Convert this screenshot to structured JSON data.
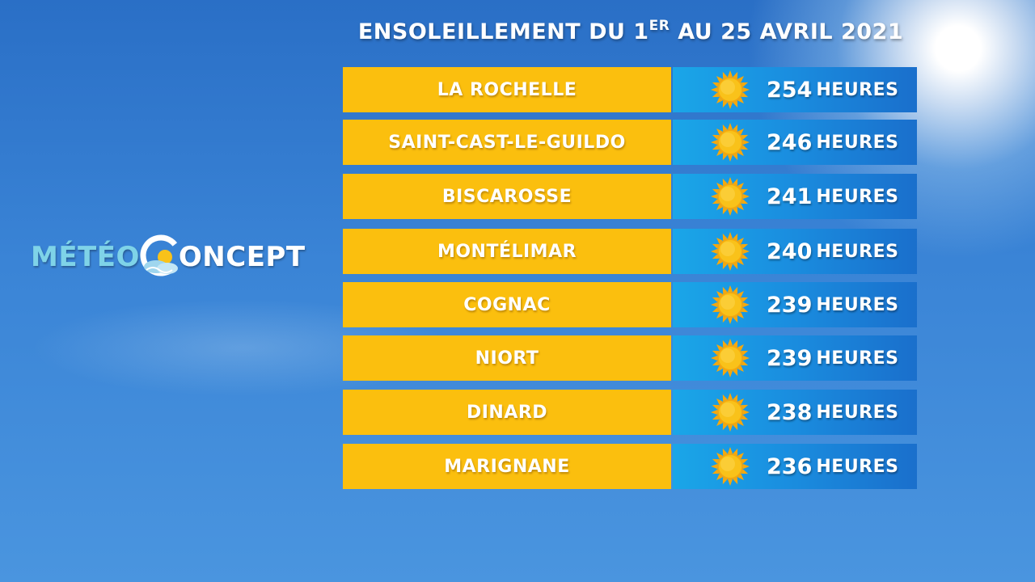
{
  "title": {
    "prefix": "ENSOLEILLEMENT DU 1",
    "sup": "ER",
    "suffix": " AU 25 AVRIL 2021"
  },
  "logo": {
    "part1": "MÉTÉO",
    "part2": "ONCEPT"
  },
  "unit": "HEURES",
  "colors": {
    "city_band": "#fbbf0e",
    "value_band": "#1a8fe0",
    "sun": "#f9c21a"
  },
  "rows": [
    {
      "city": "LA ROCHELLE",
      "hours": "254",
      "icon": "sun-icon"
    },
    {
      "city": "SAINT-CAST-LE-GUILDO",
      "hours": "246",
      "icon": "sun-icon"
    },
    {
      "city": "BISCAROSSE",
      "hours": "241",
      "icon": "sun-icon"
    },
    {
      "city": "MONTÉLIMAR",
      "hours": "240",
      "icon": "sun-icon"
    },
    {
      "city": "COGNAC",
      "hours": "239",
      "icon": "sun-icon"
    },
    {
      "city": "NIORT",
      "hours": "239",
      "icon": "sun-icon"
    },
    {
      "city": "DINARD",
      "hours": "238",
      "icon": "sun-icon"
    },
    {
      "city": "MARIGNANE",
      "hours": "236",
      "icon": "sun-icon"
    }
  ]
}
